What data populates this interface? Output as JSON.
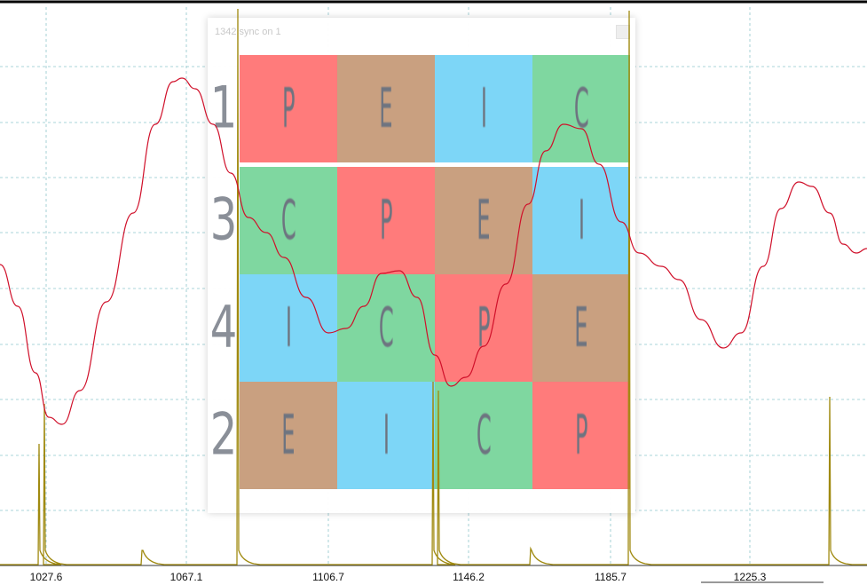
{
  "overlay": {
    "title": "1342 sync on 1",
    "rows": [
      {
        "label": "1",
        "cells": [
          "P",
          "E",
          "I",
          "C"
        ]
      },
      {
        "label": "3",
        "cells": [
          "C",
          "P",
          "E",
          "I"
        ]
      },
      {
        "label": "4",
        "cells": [
          "I",
          "C",
          "P",
          "E"
        ]
      },
      {
        "label": "2",
        "cells": [
          "E",
          "I",
          "C",
          "P"
        ]
      }
    ],
    "colors": {
      "P": "#ff7b7b",
      "E": "#c9a080",
      "I": "#7dd6f7",
      "C": "#7fd7a0"
    }
  },
  "xaxis": {
    "ticks": [
      "1027.6",
      "1067.1",
      "1106.7",
      "1146.2",
      "1185.7",
      "1225.3"
    ]
  },
  "colors": {
    "red_trace": "#d0102a",
    "spike_trace": "#a08a10",
    "grid": "#8fc6cc"
  }
}
